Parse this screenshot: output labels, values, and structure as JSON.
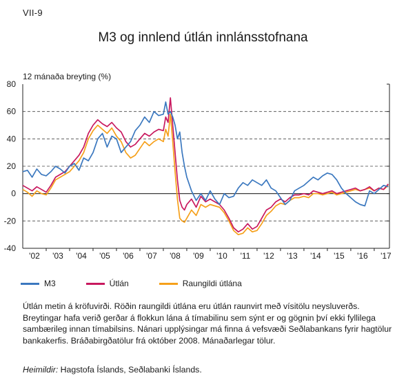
{
  "figure_label": "VII-9",
  "note": "Útlán metin á kröfuvirði. Röðin raungildi útlána eru útlán raunvirt með vísitölu neysluverðs. Breytingar hafa verið gerðar á flokkun lána á tímabilinu sem sýnt er og gögnin því ekki fyllilega sambærileg innan tímabilsins. Nánari upplýsingar má finna á vefsvæði Seðlabankans fyrir hagtölur bankakerfis. Bráðabirgðatölur frá október 2008. Mánaðarlegar tölur.",
  "sources": {
    "label": "Heimildir:",
    "text": "Hagstofa Íslands, Seðlabanki Íslands."
  },
  "colors": {
    "M3": "#3b78bf",
    "Utlan": "#c8185e",
    "Raungildi": "#f6a01a"
  },
  "chart_data": {
    "type": "line",
    "title": "M3 og innlend útlán innlánsstofnana",
    "ylabel": "12 mánaða breyting (%)",
    "ylim": [
      -40,
      80
    ],
    "yticks": [
      -40,
      -20,
      0,
      20,
      40,
      60,
      80
    ],
    "xlim": [
      2002.0,
      2017.65
    ],
    "xtick_labels": [
      "'02",
      "'03",
      "'04",
      "'05",
      "'06",
      "'07",
      "'08",
      "'09",
      "'10",
      "'11",
      "'12",
      "'13",
      "'14",
      "'15",
      "'16",
      "'17"
    ],
    "grid": "horizontal dashed at 60, 40, 20, -20; solid zero line",
    "legend_position": "bottom",
    "series": [
      {
        "name": "M3",
        "x": [
          2002.0,
          2002.2,
          2002.4,
          2002.6,
          2002.8,
          2003.0,
          2003.2,
          2003.4,
          2003.6,
          2003.8,
          2004.0,
          2004.2,
          2004.4,
          2004.6,
          2004.8,
          2005.0,
          2005.2,
          2005.4,
          2005.6,
          2005.8,
          2006.0,
          2006.2,
          2006.4,
          2006.6,
          2006.8,
          2007.0,
          2007.2,
          2007.4,
          2007.6,
          2007.8,
          2008.0,
          2008.1,
          2008.2,
          2008.3,
          2008.4,
          2008.5,
          2008.6,
          2008.7,
          2008.8,
          2008.9,
          2009.0,
          2009.2,
          2009.4,
          2009.6,
          2009.8,
          2010.0,
          2010.2,
          2010.4,
          2010.6,
          2010.8,
          2011.0,
          2011.2,
          2011.4,
          2011.6,
          2011.8,
          2012.0,
          2012.2,
          2012.4,
          2012.6,
          2012.8,
          2013.0,
          2013.2,
          2013.4,
          2013.6,
          2013.8,
          2014.0,
          2014.2,
          2014.4,
          2014.6,
          2014.8,
          2015.0,
          2015.2,
          2015.4,
          2015.6,
          2015.8,
          2016.0,
          2016.2,
          2016.4,
          2016.6,
          2016.8,
          2017.0,
          2017.2,
          2017.4,
          2017.6
        ],
        "values": [
          16,
          17,
          12,
          18,
          14,
          13,
          16,
          20,
          18,
          15,
          20,
          22,
          17,
          26,
          24,
          30,
          40,
          44,
          34,
          42,
          40,
          30,
          34,
          38,
          46,
          50,
          56,
          52,
          60,
          57,
          58,
          67,
          58,
          60,
          56,
          50,
          40,
          45,
          30,
          20,
          12,
          2,
          -5,
          0,
          -5,
          2,
          -4,
          -8,
          0,
          -3,
          -2,
          4,
          8,
          6,
          10,
          8,
          6,
          10,
          4,
          2,
          -3,
          -8,
          -5,
          2,
          4,
          6,
          9,
          12,
          10,
          13,
          15,
          14,
          10,
          4,
          0,
          -3,
          -6,
          -8,
          -9,
          2,
          0,
          3,
          6,
          5
        ]
      },
      {
        "name": "Útlán",
        "x": [
          2002.0,
          2002.2,
          2002.4,
          2002.6,
          2002.8,
          2003.0,
          2003.2,
          2003.4,
          2003.6,
          2003.8,
          2004.0,
          2004.2,
          2004.4,
          2004.6,
          2004.8,
          2005.0,
          2005.2,
          2005.4,
          2005.6,
          2005.8,
          2006.0,
          2006.2,
          2006.4,
          2006.6,
          2006.8,
          2007.0,
          2007.2,
          2007.4,
          2007.6,
          2007.8,
          2008.0,
          2008.1,
          2008.2,
          2008.3,
          2008.4,
          2008.5,
          2008.6,
          2008.7,
          2008.8,
          2008.9,
          2009.0,
          2009.2,
          2009.4,
          2009.6,
          2009.8,
          2010.0,
          2010.2,
          2010.4,
          2010.6,
          2010.8,
          2011.0,
          2011.2,
          2011.4,
          2011.6,
          2011.8,
          2012.0,
          2012.2,
          2012.4,
          2012.6,
          2012.8,
          2013.0,
          2013.2,
          2013.4,
          2013.6,
          2013.8,
          2014.0,
          2014.2,
          2014.4,
          2014.6,
          2014.8,
          2015.0,
          2015.2,
          2015.4,
          2015.6,
          2015.8,
          2016.0,
          2016.2,
          2016.4,
          2016.6,
          2016.8,
          2017.0,
          2017.2,
          2017.4,
          2017.6
        ],
        "values": [
          6,
          4,
          2,
          5,
          3,
          1,
          6,
          12,
          14,
          16,
          20,
          24,
          28,
          34,
          44,
          50,
          54,
          51,
          49,
          52,
          48,
          45,
          38,
          34,
          36,
          40,
          44,
          42,
          45,
          47,
          46,
          56,
          52,
          70,
          50,
          30,
          10,
          -5,
          -10,
          -12,
          -8,
          -4,
          -10,
          -2,
          -6,
          -4,
          -6,
          -8,
          -12,
          -18,
          -25,
          -28,
          -26,
          -22,
          -26,
          -24,
          -18,
          -12,
          -10,
          -6,
          -4,
          -6,
          -3,
          -1,
          -1,
          0,
          -1,
          2,
          1,
          0,
          1,
          2,
          0,
          1,
          2,
          3,
          4,
          2,
          3,
          5,
          2,
          4,
          3,
          7
        ]
      },
      {
        "name": "Raungildi útlána",
        "x": [
          2002.0,
          2002.2,
          2002.4,
          2002.6,
          2002.8,
          2003.0,
          2003.2,
          2003.4,
          2003.6,
          2003.8,
          2004.0,
          2004.2,
          2004.4,
          2004.6,
          2004.8,
          2005.0,
          2005.2,
          2005.4,
          2005.6,
          2005.8,
          2006.0,
          2006.2,
          2006.4,
          2006.6,
          2006.8,
          2007.0,
          2007.2,
          2007.4,
          2007.6,
          2007.8,
          2008.0,
          2008.1,
          2008.2,
          2008.3,
          2008.4,
          2008.5,
          2008.6,
          2008.7,
          2008.8,
          2008.9,
          2009.0,
          2009.2,
          2009.4,
          2009.6,
          2009.8,
          2010.0,
          2010.2,
          2010.4,
          2010.6,
          2010.8,
          2011.0,
          2011.2,
          2011.4,
          2011.6,
          2011.8,
          2012.0,
          2012.2,
          2012.4,
          2012.6,
          2012.8,
          2013.0,
          2013.2,
          2013.4,
          2013.6,
          2013.8,
          2014.0,
          2014.2,
          2014.4,
          2014.6,
          2014.8,
          2015.0,
          2015.2,
          2015.4,
          2015.6,
          2015.8,
          2016.0,
          2016.2,
          2016.4,
          2016.6,
          2016.8,
          2017.0,
          2017.2,
          2017.4,
          2017.6
        ],
        "values": [
          3,
          1,
          -2,
          2,
          0,
          -1,
          4,
          10,
          12,
          14,
          16,
          20,
          24,
          30,
          40,
          46,
          50,
          47,
          44,
          48,
          42,
          38,
          30,
          26,
          28,
          33,
          38,
          35,
          38,
          40,
          38,
          47,
          42,
          58,
          38,
          16,
          -4,
          -18,
          -20,
          -21,
          -18,
          -12,
          -16,
          -8,
          -10,
          -8,
          -9,
          -10,
          -14,
          -20,
          -27,
          -30,
          -29,
          -25,
          -28,
          -27,
          -22,
          -16,
          -13,
          -9,
          -7,
          -8,
          -5,
          -3,
          -3,
          -2,
          -3,
          0,
          0,
          -1,
          0,
          1,
          -1,
          0,
          1,
          2,
          3,
          2,
          3,
          4,
          2,
          4,
          3,
          6
        ]
      }
    ]
  }
}
